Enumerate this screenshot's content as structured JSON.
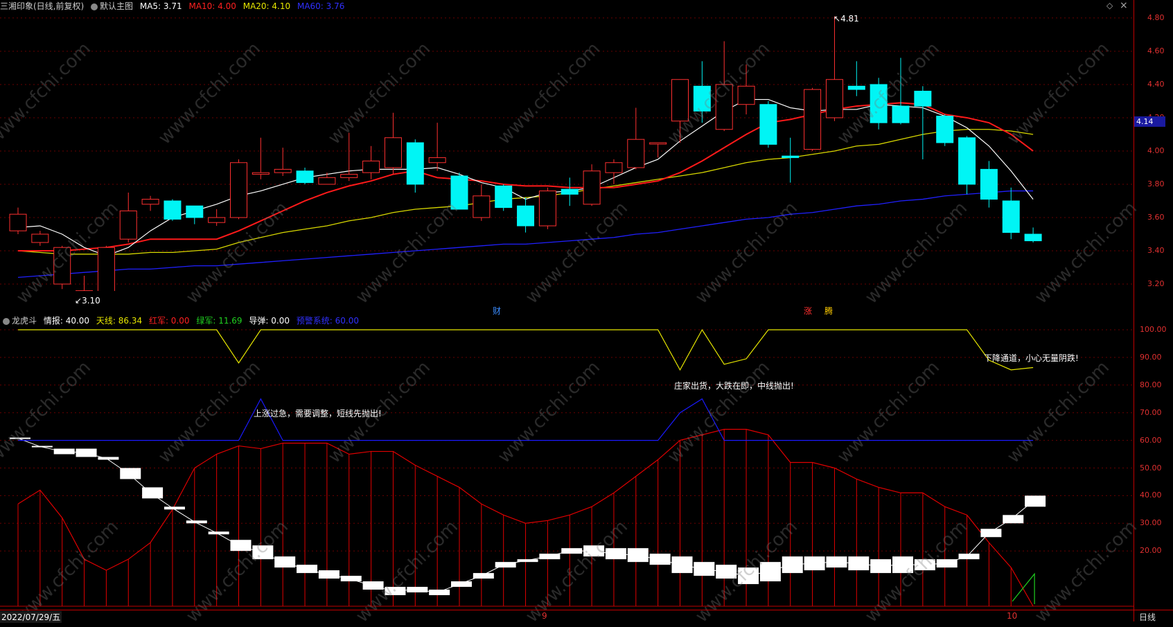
{
  "main_panel": {
    "title": "三湘印象(日线,前复权)",
    "template": "默认主图",
    "ma": [
      {
        "label": "MA5: 3.71",
        "color": "#ffffff"
      },
      {
        "label": "MA10: 4.00",
        "color": "#ff2020"
      },
      {
        "label": "MA20: 4.10",
        "color": "#e6e600"
      },
      {
        "label": "MA60: 3.76",
        "color": "#2020ff"
      }
    ],
    "y_ticks": [
      "4.80",
      "4.60",
      "4.40",
      "4.20",
      "4.00",
      "3.80",
      "3.60",
      "3.40",
      "3.20"
    ],
    "current_price": "4.14",
    "high_label": "4.81",
    "low_label": "3.10",
    "markers": {
      "cai": "财",
      "zhang": "涨",
      "teng": "腾"
    },
    "controls": {
      "diamond": "◇",
      "close": "×"
    }
  },
  "sub_panel": {
    "title": "龙虎斗",
    "items": [
      {
        "label": "情报: 40.00",
        "color": "#ffffff"
      },
      {
        "label": "天线: 86.34",
        "color": "#e6e600"
      },
      {
        "label": "红军: 0.00",
        "color": "#ff2020"
      },
      {
        "label": "绿军: 11.69",
        "color": "#20d020"
      },
      {
        "label": "导弹: 0.00",
        "color": "#ffffff"
      },
      {
        "label": "预警系统: 60.00",
        "color": "#2020ff"
      }
    ],
    "y_ticks": [
      "100.00",
      "90.00",
      "80.00",
      "70.00",
      "60.00",
      "50.00",
      "40.00",
      "30.00",
      "20.00"
    ],
    "annotations": {
      "a1": "上涨过急，需要调整，短线先抛出!",
      "a2": "庄家出货，大跌在即，中线抛出!",
      "a3": "下降通道，小心无量阴跌!"
    }
  },
  "bottom_bar": {
    "date": "2022/07/29/五",
    "month9": "9",
    "month10": "10",
    "period": "日线"
  },
  "watermark": "www.cfchi.com",
  "chart_data": {
    "type": "candlestick",
    "title": "三湘印象(日线,前复权)",
    "ylim": [
      3.1,
      4.9
    ],
    "candles": [
      {
        "o": 3.52,
        "c": 3.62,
        "h": 3.66,
        "l": 3.5
      },
      {
        "o": 3.45,
        "c": 3.5,
        "h": 3.52,
        "l": 3.43
      },
      {
        "o": 3.2,
        "c": 3.42,
        "h": 3.43,
        "l": 3.17
      },
      {
        "o": 3.12,
        "c": 3.16,
        "h": 3.25,
        "l": 3.1
      },
      {
        "o": 3.12,
        "c": 3.42,
        "h": 3.43,
        "l": 3.11
      },
      {
        "o": 3.47,
        "c": 3.64,
        "h": 3.75,
        "l": 3.45
      },
      {
        "o": 3.68,
        "c": 3.71,
        "h": 3.73,
        "l": 3.64
      },
      {
        "o": 3.7,
        "c": 3.59,
        "h": 3.71,
        "l": 3.58
      },
      {
        "o": 3.67,
        "c": 3.6,
        "h": 3.67,
        "l": 3.56
      },
      {
        "o": 3.57,
        "c": 3.6,
        "h": 3.65,
        "l": 3.55
      },
      {
        "o": 3.6,
        "c": 3.93,
        "h": 3.95,
        "l": 3.59
      },
      {
        "o": 3.86,
        "c": 3.87,
        "h": 4.08,
        "l": 3.83
      },
      {
        "o": 3.87,
        "c": 3.89,
        "h": 4.02,
        "l": 3.85
      },
      {
        "o": 3.88,
        "c": 3.81,
        "h": 3.9,
        "l": 3.8
      },
      {
        "o": 3.8,
        "c": 3.84,
        "h": 3.87,
        "l": 3.8
      },
      {
        "o": 3.84,
        "c": 3.86,
        "h": 4.11,
        "l": 3.82
      },
      {
        "o": 3.87,
        "c": 3.94,
        "h": 4.03,
        "l": 3.83
      },
      {
        "o": 3.9,
        "c": 4.08,
        "h": 4.23,
        "l": 3.86
      },
      {
        "o": 4.05,
        "c": 3.8,
        "h": 4.07,
        "l": 3.75
      },
      {
        "o": 3.93,
        "c": 3.96,
        "h": 4.17,
        "l": 3.88
      },
      {
        "o": 3.85,
        "c": 3.65,
        "h": 3.87,
        "l": 3.65
      },
      {
        "o": 3.6,
        "c": 3.73,
        "h": 3.8,
        "l": 3.58
      },
      {
        "o": 3.79,
        "c": 3.66,
        "h": 3.8,
        "l": 3.64
      },
      {
        "o": 3.67,
        "c": 3.55,
        "h": 3.72,
        "l": 3.51
      },
      {
        "o": 3.55,
        "c": 3.76,
        "h": 3.78,
        "l": 3.53
      },
      {
        "o": 3.77,
        "c": 3.74,
        "h": 3.84,
        "l": 3.67
      },
      {
        "o": 3.68,
        "c": 3.88,
        "h": 3.92,
        "l": 3.67
      },
      {
        "o": 3.87,
        "c": 3.93,
        "h": 3.95,
        "l": 3.8
      },
      {
        "o": 3.9,
        "c": 4.07,
        "h": 4.26,
        "l": 3.89
      },
      {
        "o": 4.05,
        "c": 4.05,
        "h": 4.05,
        "l": 3.96
      },
      {
        "o": 4.18,
        "c": 4.43,
        "h": 4.43,
        "l": 4.05
      },
      {
        "o": 4.39,
        "c": 4.24,
        "h": 4.54,
        "l": 4.17
      },
      {
        "o": 4.13,
        "c": 4.4,
        "h": 4.66,
        "l": 4.12
      },
      {
        "o": 4.28,
        "c": 4.39,
        "h": 4.52,
        "l": 4.22
      },
      {
        "o": 4.28,
        "c": 4.04,
        "h": 4.3,
        "l": 4.02
      },
      {
        "o": 3.97,
        "c": 3.96,
        "h": 4.08,
        "l": 3.81
      },
      {
        "o": 4.01,
        "c": 4.37,
        "h": 4.38,
        "l": 4.0
      },
      {
        "o": 4.2,
        "c": 4.43,
        "h": 4.81,
        "l": 4.18
      },
      {
        "o": 4.39,
        "c": 4.37,
        "h": 4.54,
        "l": 4.33
      },
      {
        "o": 4.4,
        "c": 4.17,
        "h": 4.44,
        "l": 4.13
      },
      {
        "o": 4.27,
        "c": 4.17,
        "h": 4.56,
        "l": 4.16
      },
      {
        "o": 4.36,
        "c": 4.27,
        "h": 4.39,
        "l": 3.95
      },
      {
        "o": 4.21,
        "c": 4.05,
        "h": 4.22,
        "l": 4.03
      },
      {
        "o": 4.08,
        "c": 3.8,
        "h": 4.09,
        "l": 3.74
      },
      {
        "o": 3.89,
        "c": 3.71,
        "h": 3.94,
        "l": 3.66
      },
      {
        "o": 3.7,
        "c": 3.51,
        "h": 3.78,
        "l": 3.47
      },
      {
        "o": 3.5,
        "c": 3.46,
        "h": 3.54,
        "l": 3.45
      }
    ],
    "ma5": [
      3.54,
      3.55,
      3.5,
      3.42,
      3.37,
      3.42,
      3.52,
      3.6,
      3.64,
      3.68,
      3.73,
      3.76,
      3.8,
      3.84,
      3.86,
      3.88,
      3.89,
      3.89,
      3.89,
      3.9,
      3.86,
      3.81,
      3.78,
      3.71,
      3.75,
      3.76,
      3.78,
      3.84,
      3.9,
      3.95,
      4.06,
      4.15,
      4.24,
      4.31,
      4.31,
      4.26,
      4.24,
      4.25,
      4.25,
      4.28,
      4.27,
      4.26,
      4.21,
      4.14,
      4.03,
      3.88,
      3.71
    ],
    "ma10": [
      3.4,
      3.4,
      3.4,
      3.41,
      3.42,
      3.44,
      3.47,
      3.47,
      3.47,
      3.47,
      3.52,
      3.58,
      3.64,
      3.7,
      3.75,
      3.79,
      3.82,
      3.86,
      3.88,
      3.84,
      3.83,
      3.82,
      3.8,
      3.79,
      3.79,
      3.78,
      3.78,
      3.78,
      3.8,
      3.82,
      3.87,
      3.94,
      4.02,
      4.1,
      4.17,
      4.19,
      4.22,
      4.25,
      4.27,
      4.28,
      4.29,
      4.28,
      4.22,
      4.2,
      4.17,
      4.1,
      4.0
    ],
    "ma20": [
      3.4,
      3.39,
      3.38,
      3.38,
      3.38,
      3.38,
      3.39,
      3.39,
      3.4,
      3.41,
      3.45,
      3.48,
      3.51,
      3.53,
      3.55,
      3.58,
      3.6,
      3.63,
      3.65,
      3.66,
      3.67,
      3.69,
      3.71,
      3.72,
      3.73,
      3.75,
      3.77,
      3.79,
      3.81,
      3.83,
      3.85,
      3.87,
      3.9,
      3.93,
      3.95,
      3.96,
      3.98,
      4.0,
      4.03,
      4.04,
      4.07,
      4.1,
      4.12,
      4.13,
      4.13,
      4.12,
      4.1
    ],
    "ma60": [
      3.24,
      3.25,
      3.26,
      3.27,
      3.28,
      3.29,
      3.29,
      3.3,
      3.31,
      3.31,
      3.32,
      3.33,
      3.34,
      3.35,
      3.36,
      3.37,
      3.38,
      3.39,
      3.4,
      3.41,
      3.42,
      3.43,
      3.44,
      3.44,
      3.45,
      3.46,
      3.47,
      3.48,
      3.5,
      3.51,
      3.53,
      3.55,
      3.57,
      3.59,
      3.6,
      3.62,
      3.63,
      3.65,
      3.67,
      3.68,
      3.7,
      3.71,
      3.73,
      3.74,
      3.75,
      3.76,
      3.76
    ]
  },
  "sub_chart": {
    "ylim": [
      0,
      105
    ],
    "tianxian": [
      100,
      100,
      100,
      100,
      100,
      100,
      100,
      100,
      100,
      100,
      88,
      100,
      100,
      100,
      100,
      100,
      100,
      100,
      100,
      100,
      100,
      100,
      100,
      100,
      100,
      100,
      100,
      100,
      100,
      100,
      85.5,
      100,
      87.5,
      89.5,
      100,
      100,
      100,
      100,
      100,
      100,
      100,
      100,
      100,
      100,
      89,
      85.5,
      86.34
    ],
    "warning": [
      60,
      60,
      60,
      60,
      60,
      60,
      60,
      60,
      60,
      60,
      60,
      75,
      60,
      60,
      60,
      60,
      60,
      60,
      60,
      60,
      60,
      60,
      60,
      60,
      60,
      60,
      60,
      60,
      60,
      60,
      70,
      75,
      60,
      60,
      60,
      60,
      60,
      60,
      60,
      60,
      60,
      60,
      60,
      60,
      60,
      60,
      60
    ],
    "hongjun": [
      37,
      42,
      32,
      17,
      13,
      17,
      23,
      35,
      50,
      55,
      58,
      57,
      59,
      59,
      59,
      55,
      56,
      56,
      51,
      47,
      43,
      37,
      33,
      30,
      31,
      33,
      36,
      41,
      47,
      53,
      60,
      62,
      64,
      64,
      62,
      52,
      52,
      50,
      46,
      43,
      41,
      41,
      36,
      33,
      23,
      14,
      0
    ],
    "qingbao_bars": [
      {
        "o": 61,
        "c": 61
      },
      {
        "o": 58,
        "c": 58
      },
      {
        "o": 57,
        "c": 55
      },
      {
        "o": 57,
        "c": 54
      },
      {
        "o": 54,
        "c": 53
      },
      {
        "o": 50,
        "c": 46
      },
      {
        "o": 43,
        "c": 39
      },
      {
        "o": 36,
        "c": 35
      },
      {
        "o": 31,
        "c": 30
      },
      {
        "o": 27,
        "c": 26
      },
      {
        "o": 24,
        "c": 20
      },
      {
        "o": 22,
        "c": 17
      },
      {
        "o": 18,
        "c": 14
      },
      {
        "o": 15,
        "c": 12
      },
      {
        "o": 13,
        "c": 10
      },
      {
        "o": 11,
        "c": 9
      },
      {
        "o": 9,
        "c": 6
      },
      {
        "o": 7,
        "c": 4
      },
      {
        "o": 7,
        "c": 5
      },
      {
        "o": 6,
        "c": 4
      },
      {
        "o": 9,
        "c": 7
      },
      {
        "o": 12,
        "c": 10
      },
      {
        "o": 16,
        "c": 14
      },
      {
        "o": 17,
        "c": 16
      },
      {
        "o": 19,
        "c": 17
      },
      {
        "o": 21,
        "c": 19
      },
      {
        "o": 22,
        "c": 18
      },
      {
        "o": 21,
        "c": 17
      },
      {
        "o": 21,
        "c": 16
      },
      {
        "o": 19,
        "c": 15
      },
      {
        "o": 18,
        "c": 12
      },
      {
        "o": 16,
        "c": 11
      },
      {
        "o": 15,
        "c": 10
      },
      {
        "o": 14,
        "c": 8
      },
      {
        "o": 16,
        "c": 9
      },
      {
        "o": 18,
        "c": 12
      },
      {
        "o": 18,
        "c": 13
      },
      {
        "o": 18,
        "c": 14
      },
      {
        "o": 18,
        "c": 13
      },
      {
        "o": 17,
        "c": 12
      },
      {
        "o": 18,
        "c": 12
      },
      {
        "o": 17,
        "c": 13
      },
      {
        "o": 17,
        "c": 14
      },
      {
        "o": 19,
        "c": 17
      },
      {
        "o": 28,
        "c": 25
      },
      {
        "o": 33,
        "c": 30
      },
      {
        "o": 40,
        "c": 36
      }
    ],
    "lvjun_last": 11.69
  }
}
